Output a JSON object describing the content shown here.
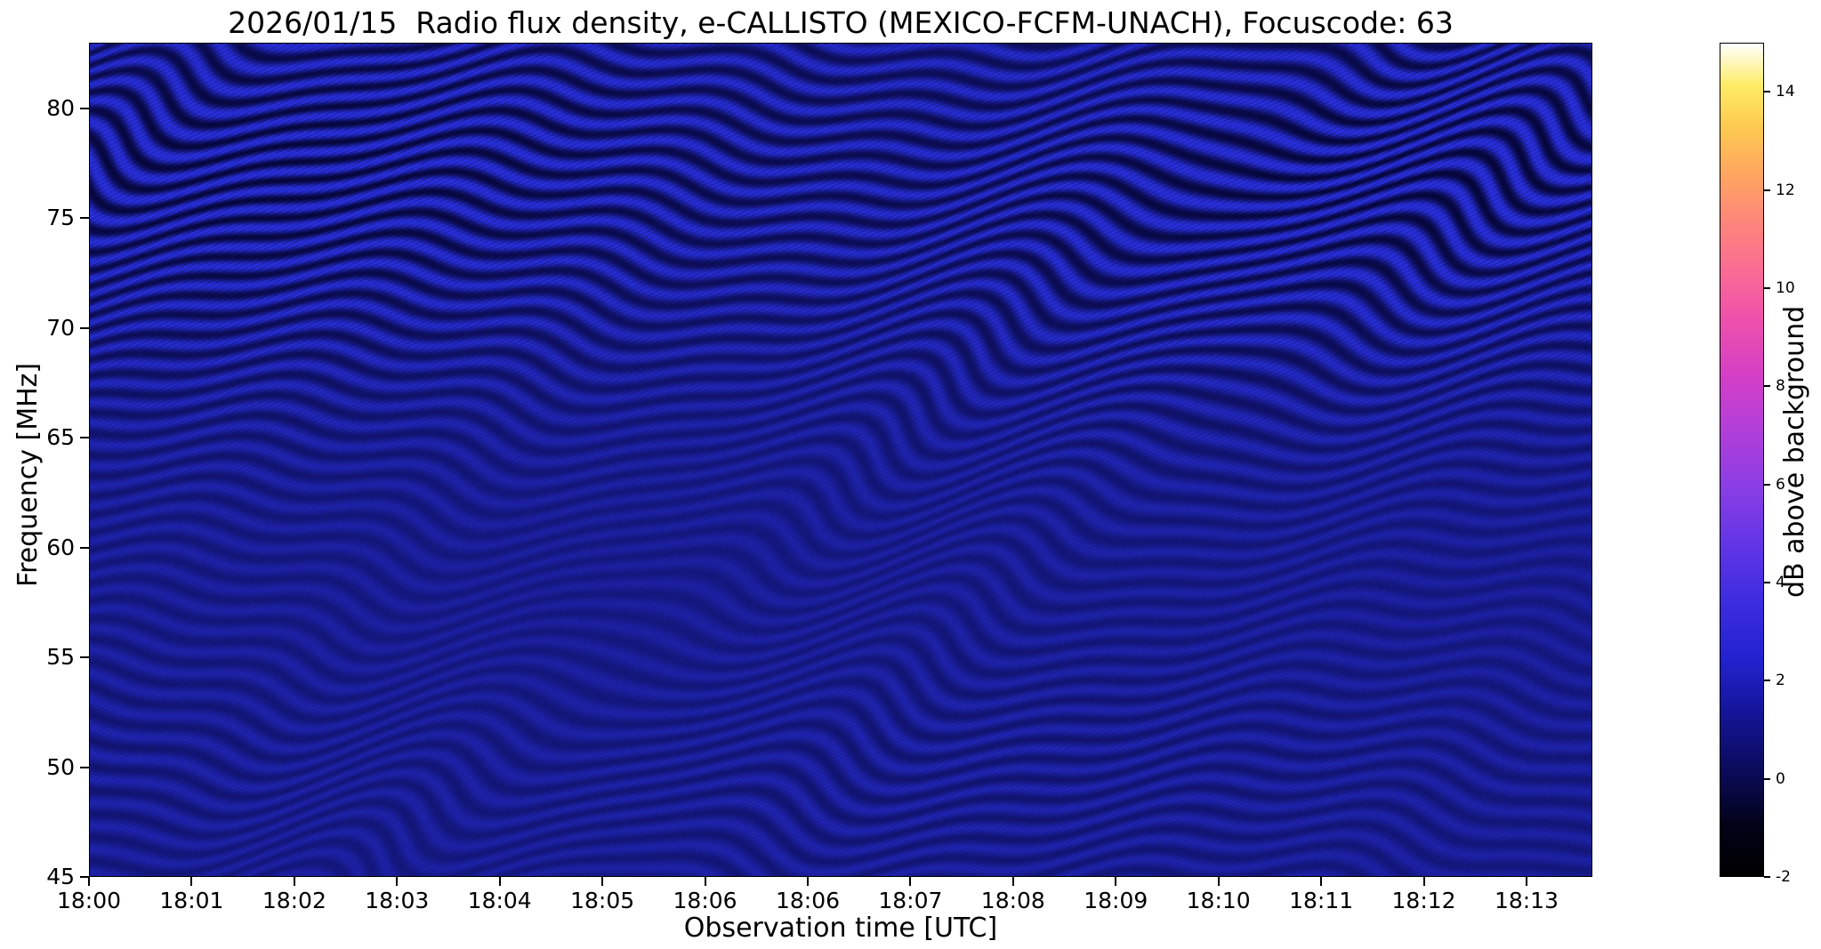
{
  "figure": {
    "background": "#ffffff",
    "text_color": "#000000"
  },
  "chart_data": {
    "type": "heatmap",
    "title": "2026/01/15  Radio flux density, e-CALLISTO (MEXICO-FCFM-UNACH), Focuscode: 63",
    "xlabel": "Observation time [UTC]",
    "ylabel": "Frequency [MHz]",
    "x_ticks": [
      "18:00",
      "18:01",
      "18:02",
      "18:03",
      "18:04",
      "18:05",
      "18:06",
      "18:06",
      "18:07",
      "18:08",
      "18:09",
      "18:10",
      "18:11",
      "18:12",
      "18:13"
    ],
    "y_ticks": [
      "80",
      "75",
      "70",
      "65",
      "60",
      "55",
      "50",
      "45"
    ],
    "y_range": [
      45,
      83
    ],
    "grid": false,
    "legend": "none",
    "colorbar": {
      "label": "dB above background",
      "ticks": [
        "14",
        "12",
        "10",
        "8",
        "6",
        "4",
        "2",
        "0",
        "-2"
      ],
      "range": [
        -2,
        15
      ],
      "stops": [
        {
          "pos": 0.0,
          "color": "#000000"
        },
        {
          "pos": 0.06,
          "color": "#020218"
        },
        {
          "pos": 0.12,
          "color": "#0a0a55"
        },
        {
          "pos": 0.2,
          "color": "#15159c"
        },
        {
          "pos": 0.26,
          "color": "#2222cf"
        },
        {
          "pos": 0.33,
          "color": "#3d2ce0"
        },
        {
          "pos": 0.4,
          "color": "#6236e6"
        },
        {
          "pos": 0.47,
          "color": "#8c3ee4"
        },
        {
          "pos": 0.54,
          "color": "#b43fd8"
        },
        {
          "pos": 0.6,
          "color": "#d33fc6"
        },
        {
          "pos": 0.67,
          "color": "#ee51ab"
        },
        {
          "pos": 0.73,
          "color": "#fa6d93"
        },
        {
          "pos": 0.79,
          "color": "#fd8878"
        },
        {
          "pos": 0.85,
          "color": "#feaa5e"
        },
        {
          "pos": 0.9,
          "color": "#fdca50"
        },
        {
          "pos": 0.95,
          "color": "#feec66"
        },
        {
          "pos": 1.0,
          "color": "#ffffff"
        }
      ]
    },
    "heatmap_appearance": {
      "background_value_db": 0,
      "dominant_color": "#10109a",
      "trough_color": "#05053a",
      "crest_color": "#2b32e0",
      "pattern": "quiet-sun dynamic spectrum: dark blue background near 0 dB with undulating horizontal interference fringes and fine diagonal hatching; strongest contrast 63-83 MHz, smooth 50-62 MHz, faint ripples 45-50 MHz",
      "fringe_amp_top": 0.55,
      "fringe_amp_base": 0.16,
      "fringe_amp_bottom": 0.1
    }
  }
}
